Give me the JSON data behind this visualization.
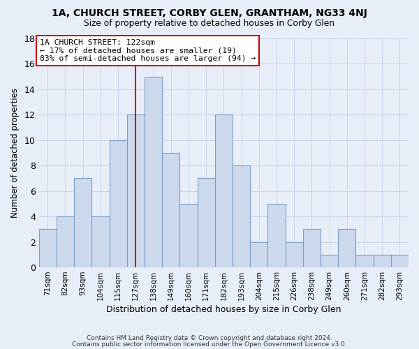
{
  "title": "1A, CHURCH STREET, CORBY GLEN, GRANTHAM, NG33 4NJ",
  "subtitle": "Size of property relative to detached houses in Corby Glen",
  "xlabel": "Distribution of detached houses by size in Corby Glen",
  "ylabel": "Number of detached properties",
  "footer_line1": "Contains HM Land Registry data © Crown copyright and database right 2024.",
  "footer_line2": "Contains public sector information licensed under the Open Government Licence v3.0.",
  "categories": [
    "71sqm",
    "82sqm",
    "93sqm",
    "104sqm",
    "115sqm",
    "127sqm",
    "138sqm",
    "149sqm",
    "160sqm",
    "171sqm",
    "182sqm",
    "193sqm",
    "204sqm",
    "215sqm",
    "226sqm",
    "238sqm",
    "249sqm",
    "260sqm",
    "271sqm",
    "282sqm",
    "293sqm"
  ],
  "values": [
    3,
    4,
    7,
    4,
    10,
    12,
    15,
    9,
    5,
    7,
    12,
    8,
    2,
    5,
    2,
    3,
    1,
    3,
    1,
    1,
    1
  ],
  "bar_color": "#ccd9ec",
  "bar_edge_color": "#7a9ec6",
  "subject_line_index": 5,
  "subject_line_color": "#cc0000",
  "annotation_title": "1A CHURCH STREET: 122sqm",
  "annotation_line1": "← 17% of detached houses are smaller (19)",
  "annotation_line2": "83% of semi-detached houses are larger (94) →",
  "annotation_box_color": "#ffffff",
  "annotation_box_edge": "#cc0000",
  "ylim": [
    0,
    18
  ],
  "yticks": [
    0,
    2,
    4,
    6,
    8,
    10,
    12,
    14,
    16,
    18
  ],
  "grid_color": "#c8d4e8",
  "background_color": "#e8eef8"
}
